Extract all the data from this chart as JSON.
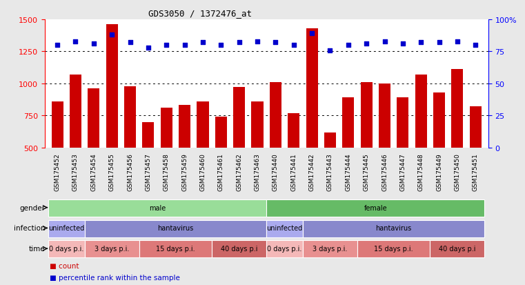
{
  "title": "GDS3050 / 1372476_at",
  "samples": [
    "GSM175452",
    "GSM175453",
    "GSM175454",
    "GSM175455",
    "GSM175456",
    "GSM175457",
    "GSM175458",
    "GSM175459",
    "GSM175460",
    "GSM175461",
    "GSM175462",
    "GSM175463",
    "GSM175440",
    "GSM175441",
    "GSM175442",
    "GSM175443",
    "GSM175444",
    "GSM175445",
    "GSM175446",
    "GSM175447",
    "GSM175448",
    "GSM175449",
    "GSM175450",
    "GSM175451"
  ],
  "counts": [
    860,
    1070,
    960,
    1460,
    980,
    700,
    810,
    835,
    860,
    740,
    975,
    860,
    1010,
    770,
    1430,
    620,
    890,
    1010,
    1000,
    890,
    1070,
    930,
    1110,
    820
  ],
  "percentiles": [
    80,
    83,
    81,
    88,
    82,
    78,
    80,
    80,
    82,
    80,
    82,
    83,
    82,
    80,
    89,
    76,
    80,
    81,
    83,
    81,
    82,
    82,
    83,
    80
  ],
  "bar_color": "#cc0000",
  "dot_color": "#0000cc",
  "ylim_left": [
    500,
    1500
  ],
  "ylim_right": [
    0,
    100
  ],
  "yticks_left": [
    500,
    750,
    1000,
    1250,
    1500
  ],
  "yticks_right": [
    0,
    25,
    50,
    75,
    100
  ],
  "ytick_labels_right": [
    "0",
    "25",
    "50",
    "75",
    "100%"
  ],
  "hgrid_values": [
    750,
    1000,
    1250
  ],
  "bg_color": "#e8e8e8",
  "plot_bg": "#ffffff",
  "gender_row": {
    "label": "gender",
    "sections": [
      {
        "text": "male",
        "start": 0,
        "end": 12,
        "color": "#99dd99"
      },
      {
        "text": "female",
        "start": 12,
        "end": 24,
        "color": "#66bb66"
      }
    ]
  },
  "infection_row": {
    "label": "infection",
    "sections": [
      {
        "text": "uninfected",
        "start": 0,
        "end": 2,
        "color": "#aaaaee"
      },
      {
        "text": "hantavirus",
        "start": 2,
        "end": 12,
        "color": "#8888cc"
      },
      {
        "text": "uninfected",
        "start": 12,
        "end": 14,
        "color": "#aaaaee"
      },
      {
        "text": "hantavirus",
        "start": 14,
        "end": 24,
        "color": "#8888cc"
      }
    ]
  },
  "time_row": {
    "label": "time",
    "sections": [
      {
        "text": "0 days p.i.",
        "start": 0,
        "end": 2,
        "color": "#f4b8b8"
      },
      {
        "text": "3 days p.i.",
        "start": 2,
        "end": 5,
        "color": "#e89090"
      },
      {
        "text": "15 days p.i.",
        "start": 5,
        "end": 9,
        "color": "#dd7878"
      },
      {
        "text": "40 days p.i",
        "start": 9,
        "end": 12,
        "color": "#cc6666"
      },
      {
        "text": "0 days p.i.",
        "start": 12,
        "end": 14,
        "color": "#f4b8b8"
      },
      {
        "text": "3 days p.i.",
        "start": 14,
        "end": 17,
        "color": "#e89090"
      },
      {
        "text": "15 days p.i.",
        "start": 17,
        "end": 21,
        "color": "#dd7878"
      },
      {
        "text": "40 days p.i",
        "start": 21,
        "end": 24,
        "color": "#cc6666"
      }
    ]
  },
  "legend_items": [
    {
      "color": "#cc0000",
      "label": "count"
    },
    {
      "color": "#0000cc",
      "label": "percentile rank within the sample"
    }
  ]
}
